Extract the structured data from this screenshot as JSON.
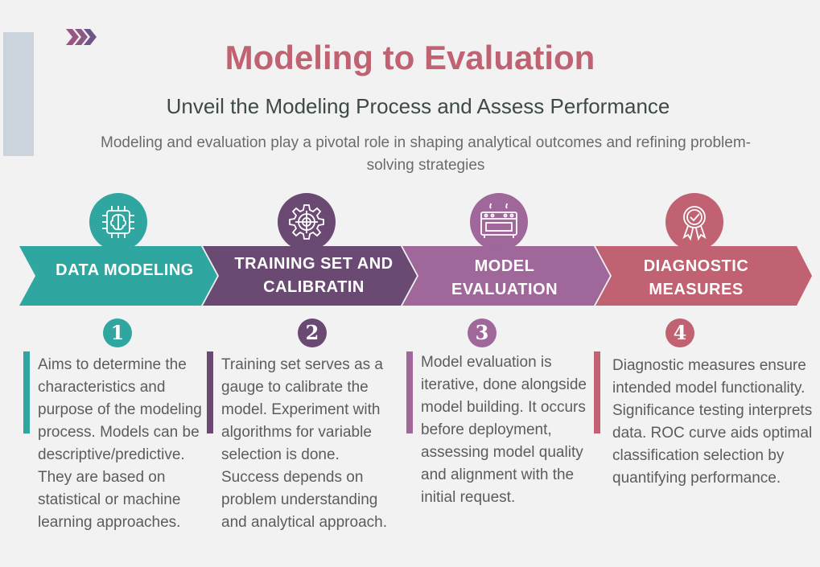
{
  "header": {
    "title": "Modeling to Evaluation",
    "subtitle": "Unveil the Modeling Process and Assess Performance",
    "description": "Modeling and evaluation play a pivotal role in shaping analytical outcomes and refining problem-solving strategies"
  },
  "colors": {
    "teal": "#2fa7a0",
    "purple": "#6a4a73",
    "mauve": "#a0679b",
    "rose": "#c06272",
    "title": "#c06272",
    "side_bar": "#cbd3dc"
  },
  "steps": [
    {
      "number": "1",
      "label": "DATA MODELING",
      "icon": "brain-chip-icon",
      "color": "#2fa7a0",
      "text": "Aims to determine the characteristics and purpose of the modeling process. Models can be descriptive/predictive. They are based on statistical or machine learning approaches."
    },
    {
      "number": "2",
      "label": "TRAINING SET AND CALIBRATIN",
      "icon": "gear-target-icon",
      "color": "#6a4a73",
      "text": "Training set serves as a gauge to calibrate the model. Experiment with algorithms for variable selection is done. Success depends on problem understanding and analytical approach."
    },
    {
      "number": "3",
      "label": "MODEL EVALUATION",
      "icon": "machine-icon",
      "color": "#a0679b",
      "text": "Model evaluation is iterative, done alongside model building. It occurs before deployment, assessing model quality and alignment with the initial request."
    },
    {
      "number": "4",
      "label": "DIAGNOSTIC MEASURES",
      "icon": "badge-check-icon",
      "color": "#c06272",
      "text": "Diagnostic measures ensure intended model functionality. Significance testing interprets data. ROC curve aids optimal classification selection by quantifying performance."
    }
  ]
}
